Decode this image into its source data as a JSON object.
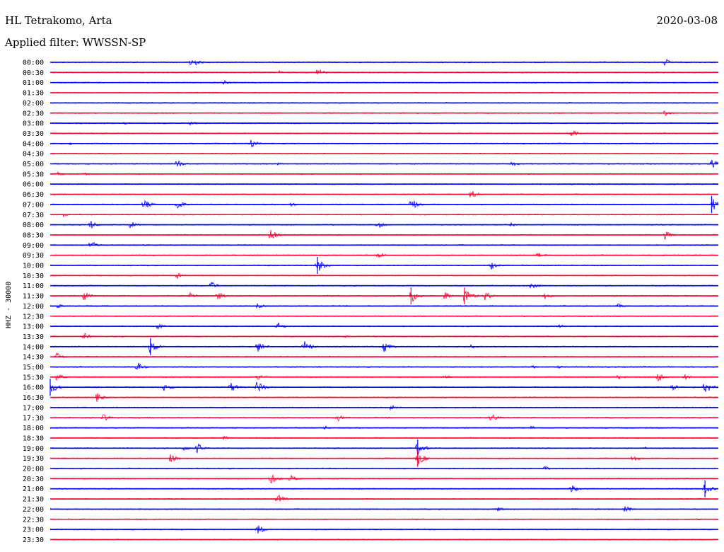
{
  "header": {
    "station": "HL Tetrakomo, Arta",
    "filter": "Applied filter: WWSSN-SP",
    "date": "2020-03-08"
  },
  "colors": {
    "odd_trace": "#0000ff",
    "even_trace": "#ff0033"
  },
  "chart_data": {
    "type": "line",
    "title": "HL Tetrakomo, Arta",
    "ylabel": "HHZ - 30000",
    "rows": [
      {
        "label": "00:00",
        "events": [
          [
            0.21,
            0.9
          ],
          [
            0.92,
            0.5
          ]
        ]
      },
      {
        "label": "00:30",
        "events": [
          [
            0.34,
            0.3
          ],
          [
            0.4,
            0.6
          ]
        ]
      },
      {
        "label": "01:00",
        "events": [
          [
            0.26,
            0.3
          ]
        ]
      },
      {
        "label": "01:30",
        "events": []
      },
      {
        "label": "02:00",
        "events": []
      },
      {
        "label": "02:30",
        "events": [
          [
            0.92,
            0.4
          ]
        ]
      },
      {
        "label": "03:00",
        "events": [
          [
            0.11,
            0.2
          ],
          [
            0.21,
            0.3
          ]
        ]
      },
      {
        "label": "03:30",
        "events": [
          [
            0.78,
            0.6
          ]
        ]
      },
      {
        "label": "04:00",
        "events": [
          [
            0.03,
            0.2
          ],
          [
            0.3,
            0.6
          ]
        ]
      },
      {
        "label": "04:30",
        "events": []
      },
      {
        "label": "05:00",
        "events": [
          [
            0.19,
            0.6
          ],
          [
            0.34,
            0.2
          ],
          [
            0.69,
            0.4
          ],
          [
            0.99,
            0.6
          ]
        ]
      },
      {
        "label": "05:30",
        "events": [
          [
            0.01,
            0.3
          ],
          [
            0.05,
            0.3
          ]
        ]
      },
      {
        "label": "06:00",
        "events": []
      },
      {
        "label": "06:30",
        "events": [
          [
            0.63,
            0.6
          ]
        ]
      },
      {
        "label": "07:00",
        "events": [
          [
            0.14,
            0.7
          ],
          [
            0.19,
            0.7
          ],
          [
            0.36,
            0.3
          ],
          [
            0.54,
            0.8
          ],
          [
            0.99,
            1.0
          ]
        ]
      },
      {
        "label": "07:30",
        "events": [
          [
            0.02,
            0.3
          ]
        ]
      },
      {
        "label": "08:00",
        "events": [
          [
            0.06,
            0.6
          ],
          [
            0.12,
            0.5
          ],
          [
            0.49,
            0.5
          ],
          [
            0.69,
            0.3
          ]
        ]
      },
      {
        "label": "08:30",
        "events": [
          [
            0.33,
            0.8
          ],
          [
            0.92,
            0.6
          ]
        ]
      },
      {
        "label": "09:00",
        "events": [
          [
            0.06,
            0.6
          ]
        ]
      },
      {
        "label": "09:30",
        "events": [
          [
            0.49,
            0.5
          ],
          [
            0.73,
            0.4
          ]
        ]
      },
      {
        "label": "10:00",
        "events": [
          [
            0.4,
            1.0
          ],
          [
            0.66,
            0.6
          ]
        ]
      },
      {
        "label": "10:30",
        "events": [
          [
            0.19,
            0.4
          ]
        ]
      },
      {
        "label": "11:00",
        "events": [
          [
            0.24,
            0.6
          ],
          [
            0.72,
            0.6
          ]
        ]
      },
      {
        "label": "11:30",
        "events": [
          [
            0.05,
            0.7
          ],
          [
            0.21,
            0.6
          ],
          [
            0.25,
            0.6
          ],
          [
            0.54,
            1.0
          ],
          [
            0.59,
            0.6
          ],
          [
            0.62,
            1.0
          ],
          [
            0.65,
            0.7
          ],
          [
            0.74,
            0.5
          ]
        ]
      },
      {
        "label": "12:00",
        "events": [
          [
            0.01,
            0.3
          ],
          [
            0.31,
            0.4
          ],
          [
            0.85,
            0.3
          ]
        ]
      },
      {
        "label": "12:30",
        "events": []
      },
      {
        "label": "13:00",
        "events": [
          [
            0.16,
            0.5
          ],
          [
            0.34,
            0.6
          ],
          [
            0.76,
            0.3
          ]
        ]
      },
      {
        "label": "13:30",
        "events": [
          [
            0.05,
            0.5
          ],
          [
            0.44,
            0.3
          ]
        ]
      },
      {
        "label": "14:00",
        "events": [
          [
            0.15,
            1.0
          ],
          [
            0.31,
            0.8
          ],
          [
            0.38,
            0.9
          ],
          [
            0.5,
            0.8
          ],
          [
            0.63,
            0.3
          ]
        ]
      },
      {
        "label": "14:30",
        "events": [
          [
            0.01,
            0.6
          ]
        ]
      },
      {
        "label": "15:00",
        "events": [
          [
            0.13,
            0.7
          ],
          [
            0.72,
            0.3
          ],
          [
            0.76,
            0.2
          ]
        ]
      },
      {
        "label": "15:30",
        "events": [
          [
            0.01,
            0.5
          ],
          [
            0.31,
            0.5
          ],
          [
            0.59,
            0.3
          ],
          [
            0.85,
            0.4
          ],
          [
            0.91,
            0.7
          ],
          [
            0.95,
            0.4
          ]
        ]
      },
      {
        "label": "16:00",
        "events": [
          [
            0.0,
            1.0
          ],
          [
            0.17,
            0.6
          ],
          [
            0.27,
            0.7
          ],
          [
            0.31,
            0.9
          ],
          [
            0.93,
            0.5
          ],
          [
            0.98,
            0.9
          ]
        ]
      },
      {
        "label": "16:30",
        "events": [
          [
            0.07,
            0.6
          ]
        ]
      },
      {
        "label": "17:00",
        "events": [
          [
            0.51,
            0.4
          ]
        ]
      },
      {
        "label": "17:30",
        "events": [
          [
            0.08,
            0.5
          ],
          [
            0.43,
            0.5
          ],
          [
            0.66,
            0.6
          ]
        ]
      },
      {
        "label": "18:00",
        "events": [
          [
            0.41,
            0.3
          ],
          [
            0.72,
            0.3
          ]
        ]
      },
      {
        "label": "18:30",
        "events": [
          [
            0.26,
            0.3
          ]
        ]
      },
      {
        "label": "19:00",
        "events": [
          [
            0.2,
            0.4
          ],
          [
            0.22,
            0.7
          ],
          [
            0.55,
            1.0
          ],
          [
            0.89,
            0.2
          ]
        ]
      },
      {
        "label": "19:30",
        "events": [
          [
            0.18,
            0.6
          ],
          [
            0.55,
            1.0
          ],
          [
            0.87,
            0.7
          ]
        ]
      },
      {
        "label": "20:00",
        "events": [
          [
            0.74,
            0.3
          ]
        ]
      },
      {
        "label": "20:30",
        "events": [
          [
            0.33,
            0.7
          ],
          [
            0.36,
            0.5
          ]
        ]
      },
      {
        "label": "21:00",
        "events": [
          [
            0.78,
            0.6
          ],
          [
            0.98,
            1.0
          ]
        ]
      },
      {
        "label": "21:30",
        "events": [
          [
            0.34,
            0.7
          ]
        ]
      },
      {
        "label": "22:00",
        "events": [
          [
            0.67,
            0.3
          ],
          [
            0.86,
            0.5
          ]
        ]
      },
      {
        "label": "22:30",
        "events": []
      },
      {
        "label": "23:00",
        "events": [
          [
            0.31,
            0.7
          ]
        ]
      },
      {
        "label": "23:30",
        "events": []
      }
    ]
  }
}
